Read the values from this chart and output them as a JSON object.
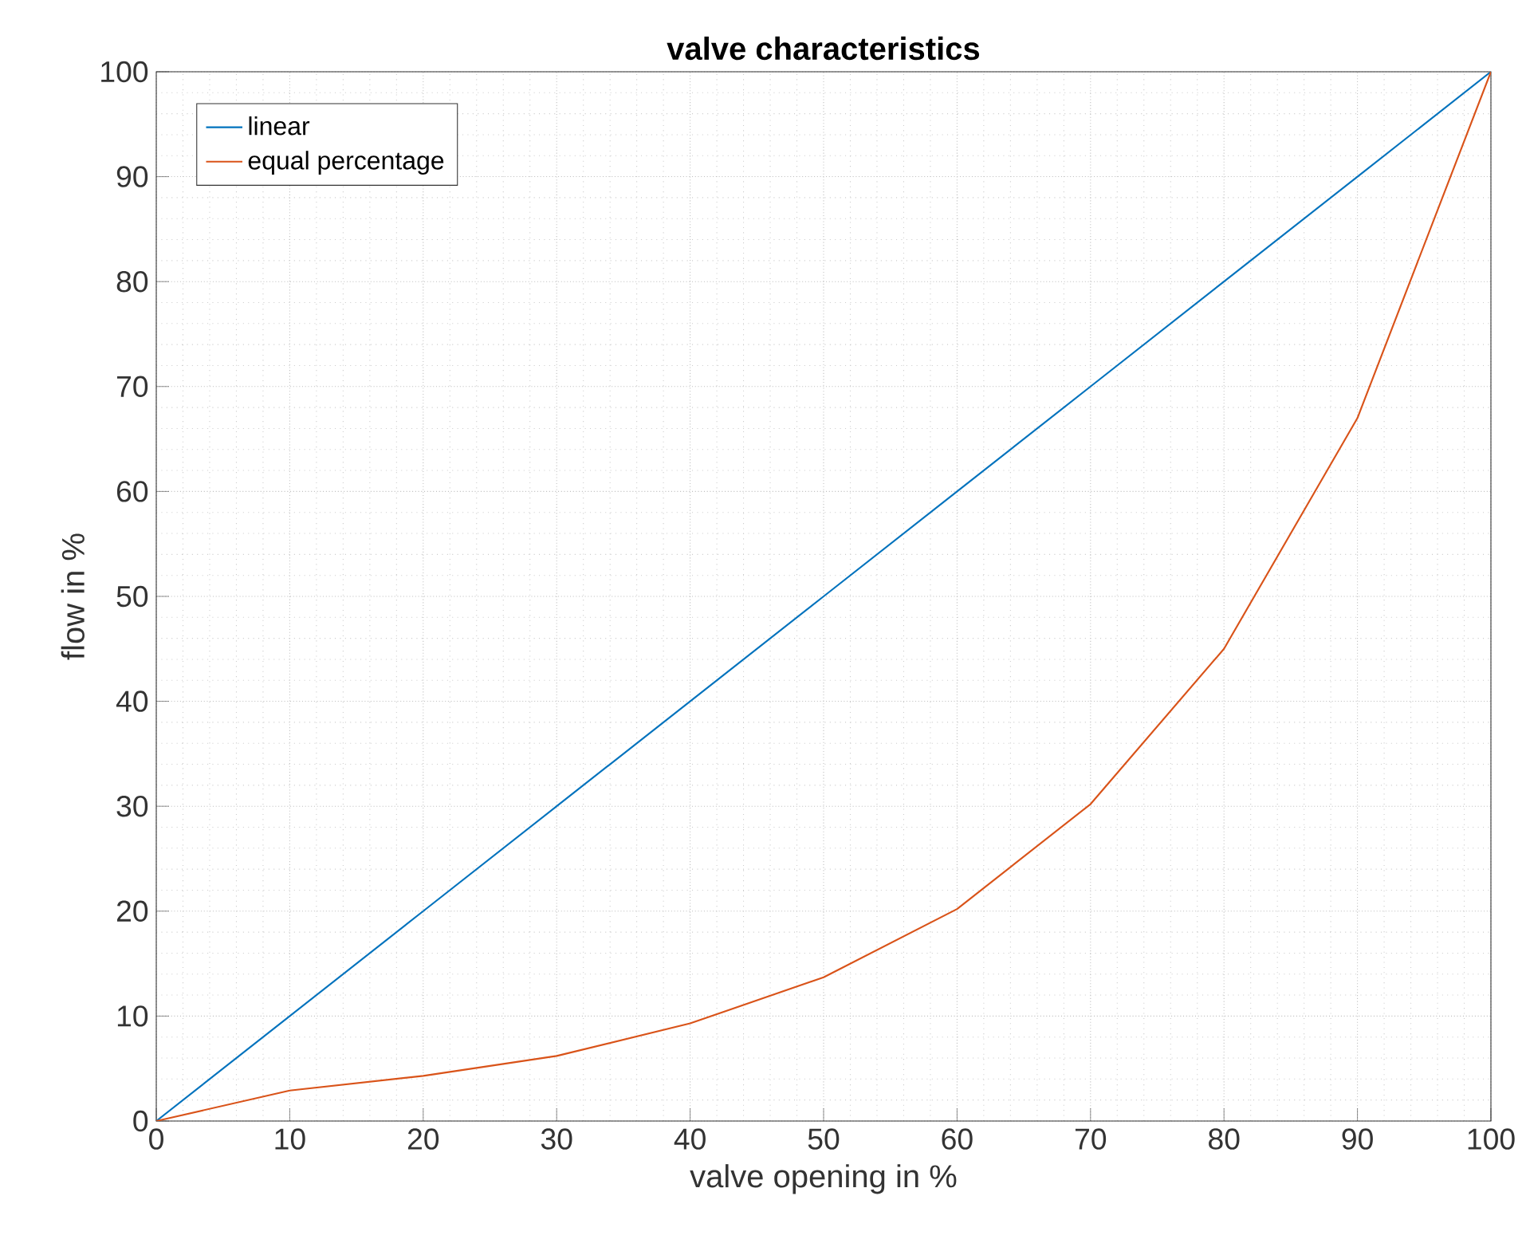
{
  "chart_data": {
    "type": "line",
    "title": "valve characteristics",
    "xlabel": "valve opening in %",
    "ylabel": "flow in %",
    "x": [
      0,
      10,
      20,
      30,
      40,
      50,
      60,
      70,
      80,
      90,
      100
    ],
    "series": [
      {
        "name": "linear",
        "color": "#0072bd",
        "values": [
          0,
          10,
          20,
          30,
          40,
          50,
          60,
          70,
          80,
          90,
          100
        ]
      },
      {
        "name": "equal percentage",
        "color": "#d95319",
        "values": [
          0,
          2.9,
          4.3,
          6.2,
          9.3,
          13.7,
          20.2,
          30.2,
          45,
          67,
          100
        ]
      }
    ],
    "xlim": [
      0,
      100
    ],
    "ylim": [
      0,
      100
    ],
    "xticks": [
      0,
      10,
      20,
      30,
      40,
      50,
      60,
      70,
      80,
      90,
      100
    ],
    "yticks": [
      0,
      10,
      20,
      30,
      40,
      50,
      60,
      70,
      80,
      90,
      100
    ],
    "grid": true,
    "legend": "top left"
  }
}
